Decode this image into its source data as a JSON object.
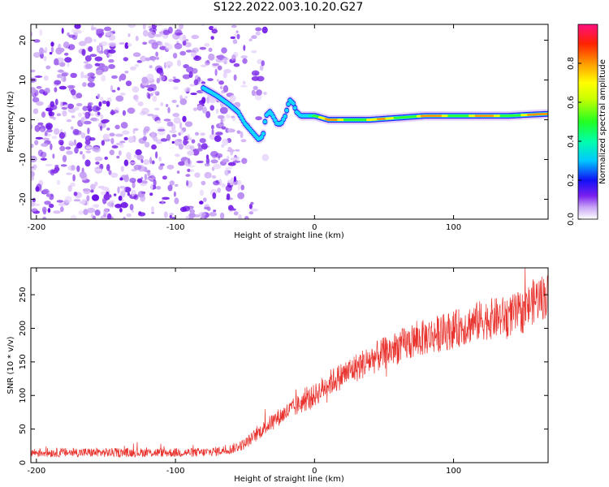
{
  "figure_title": "S122.2022.003.10.20.G27",
  "colors": {
    "snr_line": "#e8332e",
    "ridge_core": "#e8302e",
    "noise_dark": "#6a10e6",
    "noise_light": "#e2ccf8"
  },
  "chart_data": [
    {
      "type": "heatmap",
      "xlabel": "Height of straight line (km)",
      "ylabel": "Frequency (Hz)",
      "xlim": [
        -204,
        168
      ],
      "ylim": [
        -25,
        24
      ],
      "xticks": [
        -200,
        -100,
        0,
        100
      ],
      "yticks": [
        -20,
        -10,
        0,
        10,
        20
      ],
      "xtick_labels": [
        "-200",
        "-100",
        "0",
        "100"
      ],
      "ytick_labels": [
        "-20",
        "-10",
        "0",
        "10",
        "20"
      ],
      "noise_region_x": [
        -204,
        -55
      ],
      "ridge": {
        "x": [
          -80,
          -75,
          -70,
          -62,
          -55,
          -50,
          -45,
          -40,
          -37,
          -35,
          -32,
          -30,
          -27,
          -24,
          -21,
          -18,
          -15,
          -13,
          -10,
          -5,
          0,
          10,
          20,
          40,
          60,
          80,
          100,
          120,
          140,
          168
        ],
        "frequency": [
          8,
          7,
          6,
          4,
          2,
          -1,
          -3,
          -5,
          -4,
          1,
          2,
          1,
          -1,
          -1,
          1,
          5,
          4,
          2,
          1,
          1,
          1,
          0,
          0,
          0,
          0.5,
          1,
          1,
          1,
          1,
          1.5
        ],
        "amplitude": [
          0.2,
          0.25,
          0.22,
          0.2,
          0.25,
          0.3,
          0.3,
          0.35,
          0.25,
          0.3,
          0.3,
          0.25,
          0.35,
          0.3,
          0.35,
          0.4,
          0.35,
          0.4,
          0.45,
          0.6,
          0.7,
          0.85,
          0.9,
          0.8,
          0.85,
          0.9,
          0.85,
          0.9,
          0.85,
          0.9
        ]
      }
    },
    {
      "type": "line",
      "xlabel": "Height of straight line (km)",
      "ylabel": "SNR (10 * v/v)",
      "xlim": [
        -204,
        168
      ],
      "ylim": [
        0,
        290
      ],
      "xticks": [
        -200,
        -100,
        0,
        100
      ],
      "yticks": [
        0,
        50,
        100,
        150,
        200,
        250
      ],
      "xtick_labels": [
        "-200",
        "-100",
        "0",
        "100"
      ],
      "ytick_labels": [
        "0",
        "50",
        "100",
        "150",
        "200",
        "250"
      ],
      "series": [
        {
          "x": [
            -204,
            -180,
            -160,
            -140,
            -120,
            -100,
            -80,
            -70,
            -60,
            -50,
            -40,
            -30,
            -20,
            -10,
            0,
            10,
            20,
            40,
            60,
            80,
            100,
            120,
            140,
            150,
            160,
            168
          ],
          "values": [
            15,
            15,
            15,
            15,
            15,
            15,
            15,
            17,
            20,
            28,
            45,
            62,
            75,
            88,
            100,
            118,
            130,
            153,
            172,
            187,
            198,
            212,
            218,
            225,
            245,
            248
          ]
        }
      ]
    }
  ],
  "colorbar": {
    "label": "Normalized spectral amplitude",
    "range": [
      0,
      1
    ],
    "ticks": [
      0.0,
      0.2,
      0.4,
      0.6,
      0.8
    ],
    "tick_labels": [
      "0.0",
      "0.2",
      "0.4",
      "0.6",
      "0.8"
    ]
  }
}
